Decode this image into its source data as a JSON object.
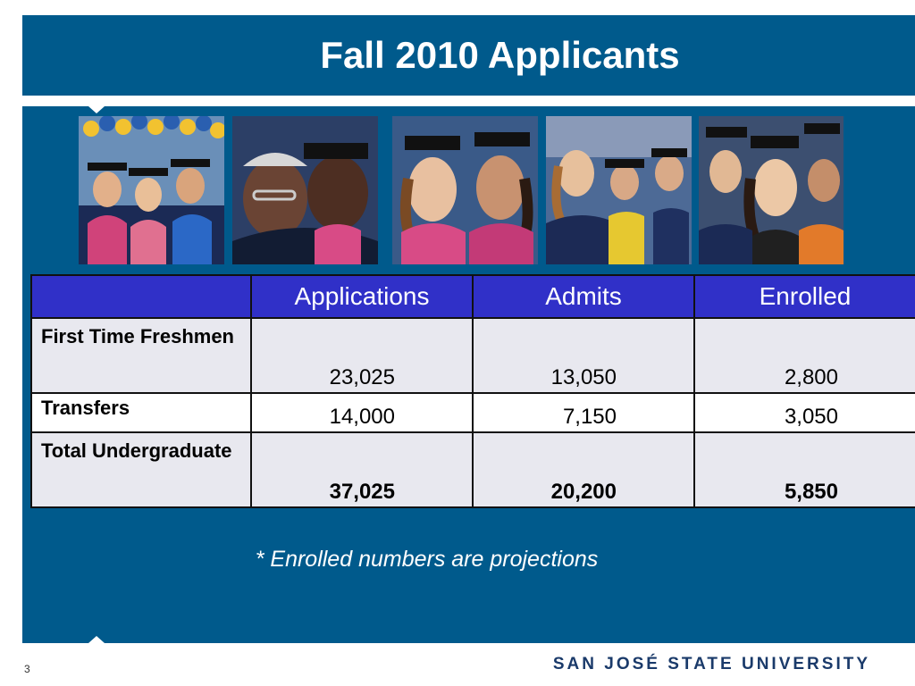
{
  "slide": {
    "title": "Fall 2010 Applicants",
    "footnote": "* Enrolled numbers are projections",
    "page_number": "3",
    "brand": "SAN JOSÉ STATE UNIVERSITY"
  },
  "table": {
    "headers": [
      "",
      "Applications",
      "Admits",
      "Enrolled"
    ],
    "rows": [
      {
        "label": "First Time Freshmen",
        "applications": "23,025",
        "admits": "13,050",
        "enrolled": "2,800"
      },
      {
        "label": "Transfers",
        "applications": "14,000",
        "admits": "7,150",
        "enrolled": "3,050"
      },
      {
        "label": "Total Undergraduate",
        "applications": "37,025",
        "admits": "20,200",
        "enrolled": "5,850"
      }
    ]
  },
  "colors": {
    "band": "#005a8c",
    "table_header": "#3030c8",
    "row_shade": "#e8e8ef",
    "brand_text": "#1a3a6a",
    "brand_accent": "#c8a032"
  }
}
